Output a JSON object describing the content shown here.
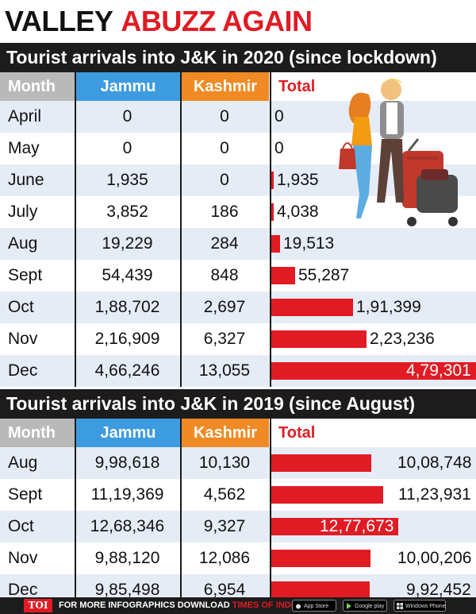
{
  "headline": {
    "part1": "VALLEY",
    "part2": "ABUZZ AGAIN"
  },
  "colors": {
    "red": "#e01b24",
    "jammu": "#3d9be0",
    "kashmir": "#f08a24",
    "month_header": "#b9b9b9",
    "band": "#1c1c1c",
    "row_shade": "#e6ecf6"
  },
  "chart_data": [
    {
      "type": "bar",
      "title": "Tourist arrivals into J&K in 2020 (since lockdown)",
      "headers": {
        "month": "Month",
        "jammu": "Jammu",
        "kashmir": "Kashmir",
        "total": "Total"
      },
      "categories": [
        "April",
        "May",
        "June",
        "July",
        "Aug",
        "Sept",
        "Oct",
        "Nov",
        "Dec"
      ],
      "series": [
        {
          "name": "Jammu",
          "labels": [
            "0",
            "0",
            "1,935",
            "3,852",
            "19,229",
            "54,439",
            "1,88,702",
            "2,16,909",
            "4,66,246"
          ],
          "values": [
            0,
            0,
            1935,
            3852,
            19229,
            54439,
            188702,
            216909,
            466246
          ]
        },
        {
          "name": "Kashmir",
          "labels": [
            "0",
            "0",
            "0",
            "186",
            "284",
            "848",
            "2,697",
            "6,327",
            "13,055"
          ],
          "values": [
            0,
            0,
            0,
            186,
            284,
            848,
            2697,
            6327,
            13055
          ]
        },
        {
          "name": "Total",
          "labels": [
            "0",
            "0",
            "1,935",
            "4,038",
            "19,513",
            "55,287",
            "1,91,399",
            "2,23,236",
            "4,79,301"
          ],
          "values": [
            0,
            0,
            1935,
            4038,
            19513,
            55287,
            191399,
            223236,
            479301
          ]
        }
      ]
    },
    {
      "type": "bar",
      "title": "Tourist arrivals into J&K in 2019 (since August)",
      "headers": {
        "month": "Month",
        "jammu": "Jammu",
        "kashmir": "Kashmir",
        "total": "Total"
      },
      "categories": [
        "Aug",
        "Sept",
        "Oct",
        "Nov",
        "Dec"
      ],
      "series": [
        {
          "name": "Jammu",
          "labels": [
            "9,98,618",
            "11,19,369",
            "12,68,346",
            "9,88,120",
            "9,85,498"
          ],
          "values": [
            998618,
            1119369,
            1268346,
            988120,
            985498
          ]
        },
        {
          "name": "Kashmir",
          "labels": [
            "10,130",
            "4,562",
            "9,327",
            "12,086",
            "6,954"
          ],
          "values": [
            10130,
            4562,
            9327,
            12086,
            6954
          ]
        },
        {
          "name": "Total",
          "labels": [
            "10,08,748",
            "11,23,931",
            "12,77,673",
            "10,00,206",
            "9,92,452"
          ],
          "values": [
            1008748,
            1123931,
            1277673,
            1000206,
            992452
          ]
        }
      ]
    }
  ],
  "footer": {
    "brand": "TOI",
    "text_white": "FOR MORE  INFOGRAPHICS DOWNLOAD ",
    "text_red": "TIMES OF INDIA APP",
    "badges": [
      "App Store",
      "Google play",
      "Windows Phone"
    ]
  }
}
